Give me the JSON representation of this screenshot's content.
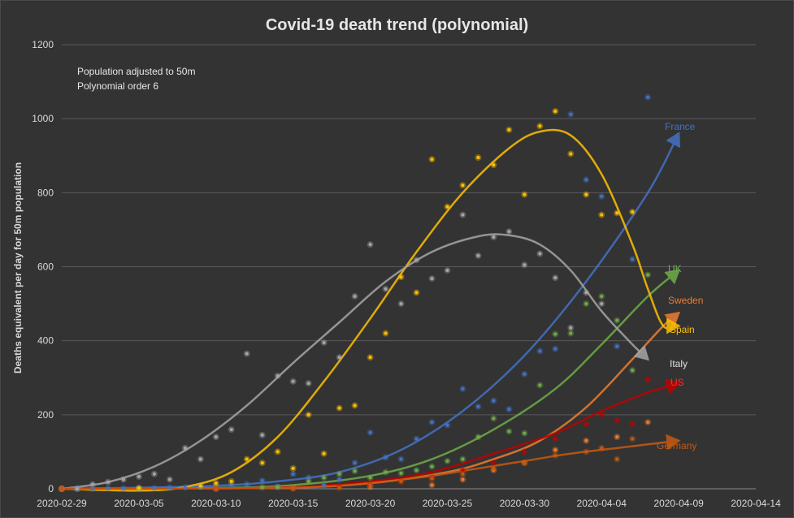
{
  "chart_data": {
    "type": "scatter",
    "title": "Covid-19 death trend (polynomial)",
    "notes": [
      "Population adjusted to 50m",
      "Polynomial order 6"
    ],
    "xlabel": "",
    "ylabel": "Deaths equivalent per day for 50m population",
    "ylim": [
      0,
      1200
    ],
    "yticks": [
      0,
      200,
      400,
      600,
      800,
      1000,
      1200
    ],
    "xticks": [
      "2020-02-29",
      "2020-03-05",
      "2020-03-10",
      "2020-03-15",
      "2020-03-20",
      "2020-03-25",
      "2020-03-30",
      "2020-04-04",
      "2020-04-09",
      "2020-04-14"
    ],
    "x_start": "2020-02-29",
    "grid": true,
    "series": [
      {
        "name": "France",
        "color": "#4472c4",
        "points": [
          [
            0,
            0
          ],
          [
            1,
            0
          ],
          [
            2,
            0
          ],
          [
            3,
            1
          ],
          [
            4,
            1
          ],
          [
            5,
            1
          ],
          [
            6,
            2
          ],
          [
            7,
            3
          ],
          [
            8,
            4
          ],
          [
            9,
            5
          ],
          [
            10,
            7
          ],
          [
            11,
            10
          ],
          [
            12,
            12
          ],
          [
            13,
            22
          ],
          [
            14,
            5
          ],
          [
            15,
            40
          ],
          [
            16,
            30
          ],
          [
            17,
            10
          ],
          [
            18,
            25
          ],
          [
            19,
            70
          ],
          [
            20,
            152
          ],
          [
            21,
            85
          ],
          [
            22,
            80
          ],
          [
            23,
            135
          ],
          [
            24,
            180
          ],
          [
            25,
            172
          ],
          [
            26,
            270
          ],
          [
            27,
            222
          ],
          [
            28,
            238
          ],
          [
            29,
            215
          ],
          [
            30,
            310
          ],
          [
            31,
            372
          ],
          [
            32,
            378
          ],
          [
            33,
            1012
          ],
          [
            34,
            835
          ],
          [
            35,
            790
          ],
          [
            36,
            385
          ],
          [
            37,
            620
          ],
          [
            38,
            1058
          ]
        ],
        "trend": [
          [
            0,
            0
          ],
          [
            5,
            3
          ],
          [
            10,
            8
          ],
          [
            14,
            20
          ],
          [
            18,
            45
          ],
          [
            22,
            105
          ],
          [
            26,
            210
          ],
          [
            30,
            360
          ],
          [
            34,
            560
          ],
          [
            38,
            800
          ],
          [
            40,
            960
          ]
        ]
      },
      {
        "name": "UK",
        "color": "#70ad47",
        "points": [
          [
            0,
            0
          ],
          [
            5,
            0
          ],
          [
            10,
            1
          ],
          [
            13,
            4
          ],
          [
            14,
            5
          ],
          [
            15,
            3
          ],
          [
            16,
            20
          ],
          [
            17,
            30
          ],
          [
            18,
            40
          ],
          [
            19,
            48
          ],
          [
            20,
            30
          ],
          [
            21,
            45
          ],
          [
            22,
            42
          ],
          [
            23,
            50
          ],
          [
            24,
            60
          ],
          [
            25,
            75
          ],
          [
            26,
            80
          ],
          [
            27,
            140
          ],
          [
            28,
            190
          ],
          [
            29,
            155
          ],
          [
            30,
            150
          ],
          [
            31,
            280
          ],
          [
            32,
            418
          ],
          [
            33,
            420
          ],
          [
            34,
            500
          ],
          [
            35,
            520
          ],
          [
            36,
            455
          ],
          [
            37,
            320
          ],
          [
            38,
            578
          ]
        ],
        "trend": [
          [
            0,
            0
          ],
          [
            10,
            2
          ],
          [
            15,
            10
          ],
          [
            20,
            35
          ],
          [
            24,
            80
          ],
          [
            28,
            160
          ],
          [
            32,
            270
          ],
          [
            35,
            390
          ],
          [
            38,
            520
          ],
          [
            40,
            590
          ]
        ]
      },
      {
        "name": "Sweden",
        "color": "#ed7d31",
        "points": [
          [
            0,
            0
          ],
          [
            10,
            0
          ],
          [
            15,
            2
          ],
          [
            20,
            5
          ],
          [
            24,
            10
          ],
          [
            26,
            25
          ],
          [
            28,
            50
          ],
          [
            30,
            70
          ],
          [
            32,
            105
          ],
          [
            34,
            130
          ],
          [
            36,
            140
          ],
          [
            38,
            180
          ]
        ],
        "trend": [
          [
            0,
            0
          ],
          [
            10,
            1
          ],
          [
            15,
            4
          ],
          [
            20,
            15
          ],
          [
            25,
            45
          ],
          [
            28,
            80
          ],
          [
            31,
            130
          ],
          [
            34,
            220
          ],
          [
            37,
            350
          ],
          [
            39,
            440
          ],
          [
            40,
            475
          ]
        ]
      },
      {
        "name": "Spain",
        "color": "#ffc000",
        "points": [
          [
            0,
            0
          ],
          [
            5,
            2
          ],
          [
            9,
            8
          ],
          [
            10,
            15
          ],
          [
            11,
            20
          ],
          [
            12,
            80
          ],
          [
            13,
            70
          ],
          [
            14,
            100
          ],
          [
            15,
            55
          ],
          [
            16,
            200
          ],
          [
            17,
            95
          ],
          [
            18,
            218
          ],
          [
            19,
            225
          ],
          [
            20,
            355
          ],
          [
            21,
            420
          ],
          [
            22,
            572
          ],
          [
            23,
            530
          ],
          [
            24,
            890
          ],
          [
            25,
            762
          ],
          [
            26,
            820
          ],
          [
            27,
            895
          ],
          [
            28,
            875
          ],
          [
            29,
            970
          ],
          [
            30,
            795
          ],
          [
            31,
            980
          ],
          [
            32,
            1020
          ],
          [
            33,
            905
          ],
          [
            34,
            795
          ],
          [
            35,
            740
          ],
          [
            36,
            745
          ],
          [
            37,
            748
          ]
        ],
        "trend": [
          [
            0,
            0
          ],
          [
            5,
            -5
          ],
          [
            8,
            5
          ],
          [
            11,
            45
          ],
          [
            14,
            140
          ],
          [
            17,
            290
          ],
          [
            20,
            460
          ],
          [
            23,
            640
          ],
          [
            26,
            800
          ],
          [
            29,
            920
          ],
          [
            31,
            965
          ],
          [
            33,
            955
          ],
          [
            35,
            850
          ],
          [
            37,
            660
          ],
          [
            38,
            540
          ],
          [
            39,
            440
          ],
          [
            40,
            440
          ]
        ]
      },
      {
        "name": "Italy",
        "color": "#a5a5a5",
        "points": [
          [
            0,
            0
          ],
          [
            1,
            0
          ],
          [
            2,
            12
          ],
          [
            3,
            18
          ],
          [
            4,
            25
          ],
          [
            5,
            33
          ],
          [
            6,
            40
          ],
          [
            7,
            25
          ],
          [
            8,
            110
          ],
          [
            9,
            80
          ],
          [
            10,
            140
          ],
          [
            11,
            160
          ],
          [
            12,
            365
          ],
          [
            13,
            145
          ],
          [
            14,
            305
          ],
          [
            15,
            290
          ],
          [
            16,
            285
          ],
          [
            17,
            395
          ],
          [
            18,
            355
          ],
          [
            19,
            520
          ],
          [
            20,
            660
          ],
          [
            21,
            540
          ],
          [
            22,
            500
          ],
          [
            23,
            618
          ],
          [
            24,
            568
          ],
          [
            25,
            590
          ],
          [
            26,
            740
          ],
          [
            27,
            630
          ],
          [
            28,
            680
          ],
          [
            29,
            695
          ],
          [
            30,
            605
          ],
          [
            31,
            635
          ],
          [
            32,
            570
          ],
          [
            33,
            435
          ],
          [
            34,
            530
          ],
          [
            35,
            500
          ]
        ],
        "trend": [
          [
            0,
            0
          ],
          [
            3,
            18
          ],
          [
            6,
            60
          ],
          [
            9,
            130
          ],
          [
            12,
            225
          ],
          [
            15,
            340
          ],
          [
            18,
            450
          ],
          [
            21,
            560
          ],
          [
            24,
            640
          ],
          [
            27,
            682
          ],
          [
            29,
            685
          ],
          [
            31,
            660
          ],
          [
            33,
            590
          ],
          [
            35,
            480
          ],
          [
            37,
            390
          ],
          [
            38,
            350
          ]
        ]
      },
      {
        "name": "US",
        "color": "#c00000",
        "points": [
          [
            0,
            0
          ],
          [
            10,
            0
          ],
          [
            15,
            1
          ],
          [
            18,
            5
          ],
          [
            20,
            10
          ],
          [
            22,
            20
          ],
          [
            24,
            30
          ],
          [
            26,
            50
          ],
          [
            28,
            70
          ],
          [
            30,
            100
          ],
          [
            32,
            135
          ],
          [
            34,
            175
          ],
          [
            35,
            200
          ],
          [
            36,
            185
          ],
          [
            37,
            175
          ],
          [
            38,
            295
          ]
        ],
        "trend": [
          [
            0,
            0
          ],
          [
            10,
            1
          ],
          [
            15,
            5
          ],
          [
            20,
            20
          ],
          [
            24,
            45
          ],
          [
            28,
            95
          ],
          [
            32,
            150
          ],
          [
            35,
            210
          ],
          [
            38,
            260
          ],
          [
            40,
            285
          ]
        ]
      },
      {
        "name": "Germany",
        "color": "#c55a11",
        "points": [
          [
            0,
            0
          ],
          [
            10,
            0
          ],
          [
            15,
            1
          ],
          [
            18,
            3
          ],
          [
            20,
            10
          ],
          [
            22,
            20
          ],
          [
            24,
            28
          ],
          [
            26,
            40
          ],
          [
            28,
            55
          ],
          [
            30,
            70
          ],
          [
            32,
            90
          ],
          [
            34,
            100
          ],
          [
            35,
            110
          ],
          [
            36,
            80
          ],
          [
            37,
            135
          ]
        ],
        "trend": [
          [
            0,
            0
          ],
          [
            10,
            1
          ],
          [
            15,
            3
          ],
          [
            18,
            8
          ],
          [
            21,
            20
          ],
          [
            24,
            35
          ],
          [
            27,
            55
          ],
          [
            30,
            75
          ],
          [
            33,
            95
          ],
          [
            36,
            110
          ],
          [
            38,
            120
          ],
          [
            40,
            130
          ]
        ]
      }
    ],
    "labels": [
      {
        "text": "France",
        "series": "France"
      },
      {
        "text": "UK",
        "series": "UK"
      },
      {
        "text": "Sweden",
        "series": "Sweden"
      },
      {
        "text": "Spain",
        "series": "Spain"
      },
      {
        "text": "Italy",
        "series": "Italy"
      },
      {
        "text": "US",
        "series": "US"
      },
      {
        "text": "Germany",
        "series": "Germany"
      }
    ]
  }
}
